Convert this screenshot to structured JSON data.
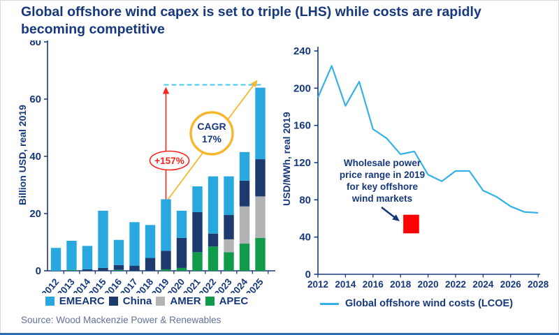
{
  "page": {
    "title_line1": "Global offshore wind capex is set to triple (LHS) while costs are rapidly",
    "title_line2": "becoming competitive",
    "source": "Source: Wood Mackenzie Power & Renewables"
  },
  "colors": {
    "navy": "#16387d",
    "emearc": "#29a8e0",
    "china": "#1c3a6e",
    "amer": "#b2b3b5",
    "apec": "#0f9b4a",
    "line": "#35b1e8",
    "red": "#f8231d",
    "red_box": "#fd0002",
    "yellow": "#f8b62d",
    "dashed": "#44c8f5",
    "source_text": "#61729b",
    "bottom_bar": "#2d6cb5"
  },
  "chart_data": [
    {
      "type": "bar",
      "stacked": true,
      "ylabel": "Billion USD, real 2019",
      "ylim": [
        0,
        80
      ],
      "yticks": [
        0,
        20,
        40,
        60,
        80
      ],
      "categories": [
        "2012",
        "2013",
        "2014",
        "2015",
        "2016",
        "2017",
        "2018",
        "2019",
        "2020",
        "2021",
        "2022",
        "2023",
        "2024",
        "2025"
      ],
      "series": [
        {
          "name": "APEC",
          "color_key": "apec",
          "values": [
            0,
            0.3,
            0,
            0,
            0.3,
            0,
            0,
            0.5,
            1,
            6.5,
            8.5,
            6.5,
            9.5,
            11.5
          ]
        },
        {
          "name": "AMER",
          "color_key": "amer",
          "values": [
            0,
            0,
            0,
            0,
            0,
            0,
            0,
            0,
            0,
            0,
            0,
            4.5,
            13,
            14.5
          ]
        },
        {
          "name": "China",
          "color_key": "china",
          "values": [
            0,
            0,
            0.5,
            1,
            1.7,
            1.8,
            4.5,
            6.5,
            10.5,
            14,
            4.5,
            8.5,
            9,
            13
          ]
        },
        {
          "name": "EMEARC",
          "color_key": "emearc",
          "values": [
            8,
            10.2,
            8.2,
            20,
            8.8,
            15.2,
            11.5,
            18,
            9.5,
            9,
            20,
            13.5,
            10,
            25
          ]
        }
      ],
      "legend_order": [
        "EMEARC",
        "China",
        "AMER",
        "APEC"
      ],
      "annotations": {
        "growth_label": "+157%",
        "cagr_line1": "CAGR",
        "cagr_line2": "17%",
        "dashed_level": 65,
        "from_year": "2019",
        "to_year": "2025"
      }
    },
    {
      "type": "line",
      "ylabel": "USD/MWh, real 2019",
      "ylim": [
        0,
        240
      ],
      "yticks": [
        0,
        40,
        80,
        120,
        160,
        200,
        240
      ],
      "xticks": [
        "2012",
        "2014",
        "2016",
        "2018",
        "2020",
        "2022",
        "2024",
        "2026",
        "2028"
      ],
      "x": [
        2012,
        2013,
        2014,
        2015,
        2016,
        2017,
        2018,
        2019,
        2020,
        2021,
        2022,
        2023,
        2024,
        2025,
        2026,
        2027,
        2028
      ],
      "values": [
        190,
        224,
        181,
        207,
        156,
        146,
        129,
        132,
        107,
        100,
        111,
        111,
        90,
        83,
        73,
        67,
        66
      ],
      "legend": "Global offshore wind costs (LCOE)",
      "annotation": {
        "lines": [
          "Wholesale power",
          "price range in 2019",
          "for  key offshore",
          "wind markets"
        ],
        "box": {
          "x_start": 2018.2,
          "x_end": 2019.35,
          "y_low": 44,
          "y_high": 64
        }
      }
    }
  ]
}
